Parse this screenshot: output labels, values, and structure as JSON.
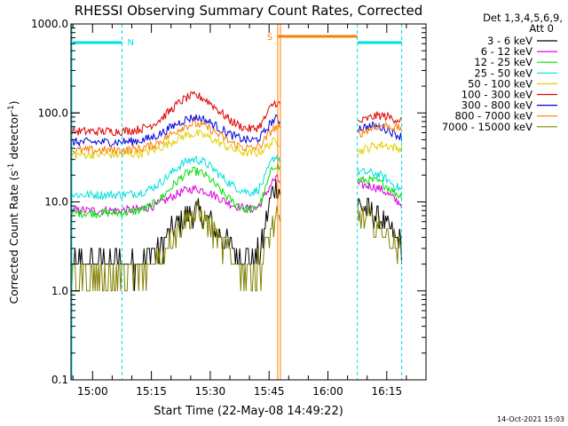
{
  "chart_data": {
    "type": "line",
    "title": "RHESSI Observing Summary Count Rates, Corrected",
    "xlabel": "Start Time (22-May-08 14:49:22)",
    "ylabel_main": "Corrected Count Rate (s",
    "ylabel_sup1": "-1",
    "ylabel_mid": " detector",
    "ylabel_sup2": "-1",
    "ylabel_end": ")",
    "yscale": "log",
    "ylim": [
      0.1,
      1000
    ],
    "y_ticks": [
      {
        "v": 0.1,
        "label": "0.1"
      },
      {
        "v": 1,
        "label": "1.0"
      },
      {
        "v": 10,
        "label": "10.0"
      },
      {
        "v": 100,
        "label": "100.0"
      },
      {
        "v": 1000,
        "label": "1000.0"
      }
    ],
    "xlim_minutes": [
      -5.5,
      85
    ],
    "x_ticks": [
      {
        "t": 0,
        "label": "15:00"
      },
      {
        "t": 15,
        "label": "15:15"
      },
      {
        "t": 30,
        "label": "15:30"
      },
      {
        "t": 45,
        "label": "15:45"
      },
      {
        "t": 60,
        "label": "16:00"
      },
      {
        "t": 75,
        "label": "16:15"
      }
    ],
    "legend": {
      "header1": "Det 1,3,4,5,6,9,",
      "header2": "Att 0",
      "placement": "right"
    },
    "series": [
      {
        "name": "3 - 6 keV",
        "color": "#000000",
        "base": 2.0,
        "peak": 7.5,
        "flare": 15,
        "post": 9,
        "post_end": 3
      },
      {
        "name": "6 - 12 keV",
        "color": "#e000e0",
        "base": 8.0,
        "peak": 14,
        "flare": 18,
        "post": 15,
        "post_end": 9
      },
      {
        "name": "12 - 25 keV",
        "color": "#00e000",
        "base": 7.5,
        "peak": 22,
        "flare": 26,
        "post": 17,
        "post_end": 11
      },
      {
        "name": "25 - 50 keV",
        "color": "#00e0e0",
        "base": 12,
        "peak": 30,
        "flare": 32,
        "post": 21,
        "post_end": 13
      },
      {
        "name": "50 - 100 keV",
        "color": "#e0d000",
        "base": 34,
        "peak": 58,
        "flare": 48,
        "post": 35,
        "post_end": 38
      },
      {
        "name": "100 - 300 keV",
        "color": "#e00000",
        "base": 62,
        "peak": 155,
        "flare": 130,
        "post": 75,
        "post_end": 80
      },
      {
        "name": "300 - 800 keV",
        "color": "#0000e0",
        "base": 47,
        "peak": 88,
        "flare": 85,
        "post": 65,
        "post_end": 52
      },
      {
        "name": "800 - 7000 keV",
        "color": "#ff8000",
        "base": 38,
        "peak": 75,
        "flare": 68,
        "post": 55,
        "post_end": 65
      },
      {
        "name": "7000 - 15000 keV",
        "color": "#808000",
        "base": 1.5,
        "peak": 7.0,
        "flare": 6,
        "post": 7,
        "post_end": 2.5
      }
    ],
    "annotations": {
      "night_label": "N",
      "saa_label": "S",
      "footer": "14-Oct-2021 15:03"
    },
    "colors": {
      "night": "#00e0e0",
      "saa": "#ff8000",
      "axes": "#000000"
    }
  }
}
